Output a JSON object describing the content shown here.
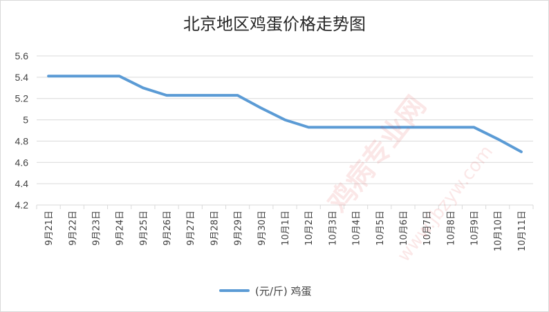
{
  "chart_data": {
    "type": "line",
    "title": "北京地区鸡蛋价格走势图",
    "categories": [
      "9月21日",
      "9月22日",
      "9月23日",
      "9月24日",
      "9月25日",
      "9月26日",
      "9月27日",
      "9月28日",
      "9月29日",
      "9月30日",
      "10月1日",
      "10月2日",
      "10月3日",
      "10月4日",
      "10月5日",
      "10月6日",
      "10月7日",
      "10月8日",
      "10月9日",
      "10月10日",
      "10月11日"
    ],
    "series": [
      {
        "name": "(元/斤) 鸡蛋",
        "values": [
          5.41,
          5.41,
          5.41,
          5.41,
          5.3,
          5.23,
          5.23,
          5.23,
          5.23,
          5.11,
          5.0,
          4.93,
          4.93,
          4.93,
          4.93,
          4.93,
          4.93,
          4.93,
          4.93,
          4.82,
          4.7
        ]
      }
    ],
    "ylim": [
      4.2,
      5.6
    ],
    "yticks": [
      "4.2",
      "4.4",
      "4.6",
      "4.8",
      "5",
      "5.2",
      "5.4",
      "5.6"
    ],
    "grid": true,
    "legend_position": "bottom",
    "line_color": "#5b9bd5",
    "grid_color": "#d9d9d9"
  },
  "watermark": {
    "text": "鸡病专业网",
    "url": "www.jbzyw.com"
  }
}
